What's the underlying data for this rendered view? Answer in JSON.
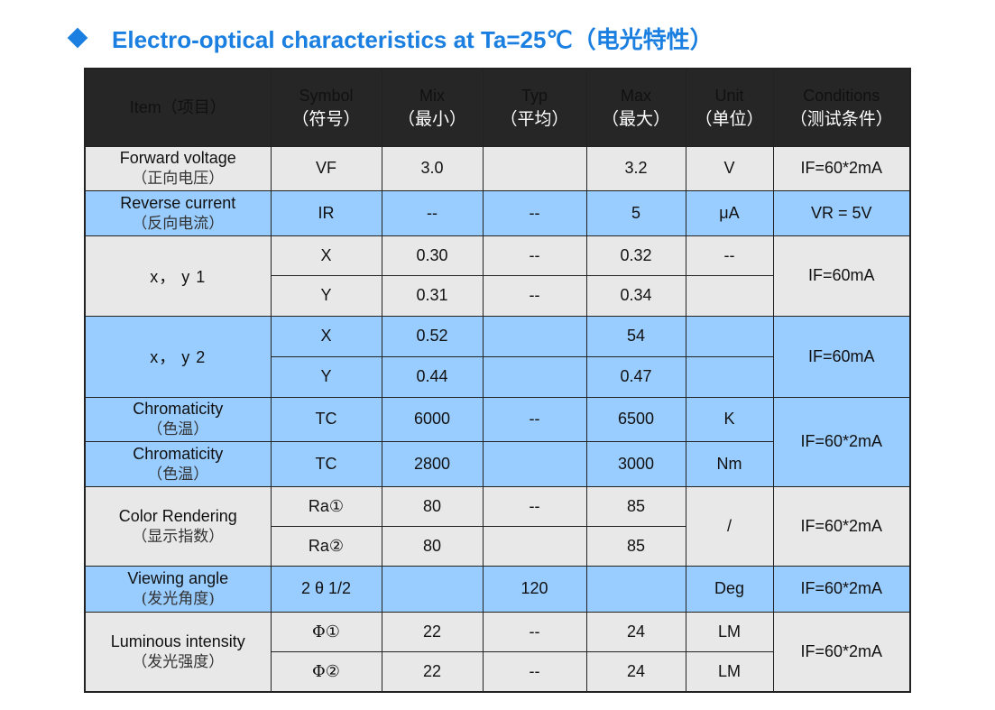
{
  "title": "Electro-optical characteristics at Ta=25℃（电光特性）",
  "headers": [
    {
      "en": "Item（项目）",
      "zh": ""
    },
    {
      "en": "Symbol",
      "zh": "（符号）"
    },
    {
      "en": "Mix",
      "zh": "（最小）"
    },
    {
      "en": "Typ",
      "zh": "（平均）"
    },
    {
      "en": "Max",
      "zh": "（最大）"
    },
    {
      "en": "Unit",
      "zh": "（单位）"
    },
    {
      "en": "Conditions",
      "zh": "（测试条件）"
    }
  ],
  "rows": {
    "forward": {
      "item_en": "Forward voltage",
      "item_zh": "（正向电压）",
      "symbol": "VF",
      "min": "3.0",
      "typ": "",
      "max": "3.2",
      "unit": "V",
      "cond": "IF=60*2mA"
    },
    "reverse": {
      "item_en": "Reverse current",
      "item_zh": "（反向电流）",
      "symbol": "IR",
      "min": "--",
      "typ": "--",
      "max": "5",
      "unit": "μA",
      "cond": "VR = 5V"
    },
    "xy1": {
      "item": "x， y 1",
      "cond": "IF=60mA",
      "x": {
        "symbol": "X",
        "min": "0.30",
        "typ": "--",
        "max": "0.32",
        "unit": "--"
      },
      "y": {
        "symbol": "Y",
        "min": "0.31",
        "typ": "--",
        "max": "0.34",
        "unit": ""
      }
    },
    "xy2": {
      "item": "x， y 2",
      "cond": "IF=60mA",
      "x": {
        "symbol": "X",
        "min": "0.52",
        "typ": "",
        "max": "54",
        "unit": ""
      },
      "y": {
        "symbol": "Y",
        "min": "0.44",
        "typ": "",
        "max": "0.47",
        "unit": ""
      }
    },
    "chroma1": {
      "item_en": "Chromaticity",
      "item_zh": "（色温）",
      "symbol": "TC",
      "min": "6000",
      "typ": "--",
      "max": "6500",
      "unit": "K"
    },
    "chroma2": {
      "item_en": "Chromaticity",
      "item_zh": "（色温）",
      "symbol": "TC",
      "min": "2800",
      "typ": "",
      "max": "3000",
      "unit": "Nm"
    },
    "chroma_cond": "IF=60*2mA",
    "cri": {
      "item_en": "Color Rendering",
      "item_zh": "（显示指数）",
      "cond": "IF=60*2mA",
      "unit": "/",
      "r1": {
        "symbol": "Ra①",
        "min": "80",
        "typ": "--",
        "max": "85"
      },
      "r2": {
        "symbol": "Ra②",
        "min": "80",
        "typ": "",
        "max": "85"
      }
    },
    "angle": {
      "item_en": "Viewing angle",
      "item_zh": "(发光角度)",
      "symbol": "2 θ 1/2",
      "min": "",
      "typ": "120",
      "max": "",
      "unit": "Deg",
      "cond": "IF=60*2mA"
    },
    "lum": {
      "item_en": "Luminous intensity",
      "item_zh": "（发光强度）",
      "cond": "IF=60*2mA",
      "r1": {
        "symbol": "Φ①",
        "min": "22",
        "typ": "--",
        "max": "24",
        "unit": "LM"
      },
      "r2": {
        "symbol": "Φ②",
        "min": "22",
        "typ": "--",
        "max": "24",
        "unit": "LM"
      }
    }
  },
  "colors": {
    "title": "#1a7fe0",
    "header_bg": "#262626",
    "row_gray": "#e8e8e8",
    "row_blue": "#99ccff"
  }
}
